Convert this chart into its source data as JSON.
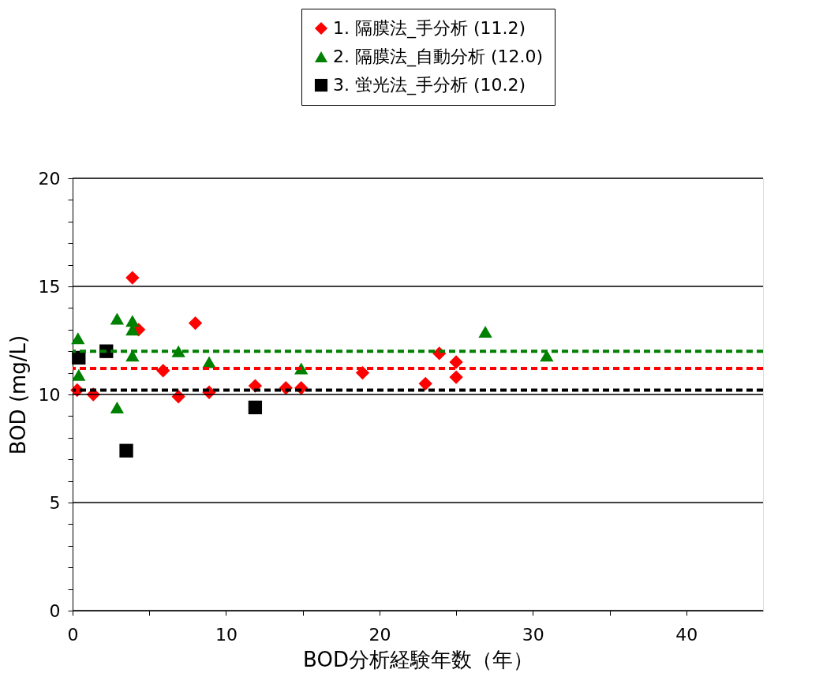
{
  "chart_data": {
    "type": "scatter",
    "xlabel": "BOD分析経験年数（年）",
    "ylabel": "BOD (mg/L)",
    "xlim": [
      0,
      45
    ],
    "ylim": [
      0,
      20
    ],
    "xticks": [
      0,
      {
        "value": 5,
        "label": null
      },
      10,
      {
        "value": 15,
        "label": null
      },
      20,
      {
        "value": 25,
        "label": null
      },
      30,
      {
        "value": 35,
        "label": null
      },
      40
    ],
    "yticks": [
      0,
      {
        "value": 1,
        "label": null
      },
      {
        "value": 2,
        "label": null
      },
      {
        "value": 3,
        "label": null
      },
      {
        "value": 4,
        "label": null
      },
      5,
      {
        "value": 6,
        "label": null
      },
      {
        "value": 7,
        "label": null
      },
      {
        "value": 8,
        "label": null
      },
      {
        "value": 9,
        "label": null
      },
      10,
      {
        "value": 11,
        "label": null
      },
      {
        "value": 12,
        "label": null
      },
      {
        "value": 13,
        "label": null
      },
      {
        "value": 14,
        "label": null
      },
      15,
      {
        "value": 16,
        "label": null
      },
      {
        "value": 17,
        "label": null
      },
      {
        "value": 18,
        "label": null
      },
      {
        "value": 19,
        "label": null
      },
      20
    ],
    "grid": "y",
    "legend": "top right",
    "series": [
      {
        "name": "1. 隔膜法_手分析 (11.2)",
        "color": "#ff0000",
        "marker": "diamond",
        "x": [
          0.3,
          1.35,
          3.9,
          4.3,
          5.9,
          6.9,
          8.0,
          8.9,
          11.9,
          13.9,
          14.9,
          18.9,
          23.0,
          23.9,
          25.0,
          25.0
        ],
        "values": [
          10.2,
          10.0,
          15.4,
          13.0,
          11.1,
          9.9,
          13.3,
          10.1,
          10.4,
          10.3,
          10.3,
          11.0,
          10.5,
          11.9,
          11.5,
          10.8
        ]
      },
      {
        "name": "2. 隔膜法_自動分析 (12.0)",
        "color": "#008000",
        "marker": "triangle",
        "x": [
          0.35,
          0.4,
          2.9,
          2.9,
          3.9,
          3.9,
          3.9,
          6.9,
          8.9,
          14.9,
          26.9,
          30.9
        ],
        "values": [
          12.6,
          10.9,
          13.5,
          9.4,
          13.4,
          13.0,
          11.8,
          12.0,
          11.5,
          11.2,
          12.9,
          11.8
        ]
      },
      {
        "name": "3. 蛍光法_手分析 (10.2)",
        "color": "#000000",
        "marker": "square",
        "x": [
          0.4,
          2.2,
          3.5,
          11.9
        ],
        "values": [
          11.7,
          12.0,
          7.4,
          9.4
        ]
      }
    ],
    "ref_lines": [
      {
        "axis": "y",
        "value": 11.2,
        "label": null,
        "color": "#ff0000",
        "line_style": "dashed"
      },
      {
        "axis": "y",
        "value": 12.0,
        "label": null,
        "color": "#008000",
        "line_style": "dashed"
      },
      {
        "axis": "y",
        "value": 10.2,
        "label": null,
        "color": "#000000",
        "line_style": "dashed"
      }
    ]
  }
}
